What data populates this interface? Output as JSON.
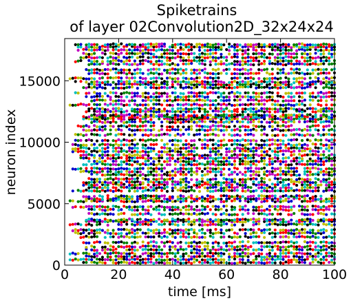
{
  "chart_data": {
    "type": "scatter",
    "title": "Spiketrains",
    "subtitle": "of layer 02Convolution2D_32x24x24",
    "xlabel": "time [ms]",
    "ylabel": "neuron index",
    "xlim": [
      0,
      100
    ],
    "ylim": [
      0,
      18432
    ],
    "xticks": [
      0,
      20,
      40,
      60,
      80,
      100
    ],
    "yticks": [
      0,
      5000,
      10000,
      15000
    ],
    "xtick_labels": [
      "0",
      "20",
      "40",
      "60",
      "80",
      "100"
    ],
    "ytick_labels": [
      "0",
      "5000",
      "10000",
      "15000"
    ],
    "grid": false,
    "legend": "none",
    "marker_colors": [
      "#0000cc",
      "#008000",
      "#ff0000",
      "#00bfbf",
      "#bf00bf",
      "#bfbf00",
      "#000000"
    ],
    "time_step_ms": 1,
    "active_neuron_rows": [
      200,
      450,
      700,
      950,
      1250,
      1500,
      1850,
      2300,
      2600,
      2850,
      3300,
      3550,
      3700,
      4150,
      4500,
      4750,
      5200,
      5400,
      5600,
      6050,
      6300,
      6550,
      6750,
      7000,
      7350,
      7600,
      7850,
      8200,
      8450,
      8700,
      8950,
      9250,
      9500,
      9800,
      10150,
      10600,
      11000,
      11300,
      11650,
      11900,
      12050,
      12200,
      12500,
      12700,
      13050,
      13400,
      13700,
      14000,
      14450,
      14700,
      14900,
      15200,
      15600,
      15900,
      16350,
      16600,
      16900,
      17200,
      17500,
      17750,
      17950
    ]
  }
}
